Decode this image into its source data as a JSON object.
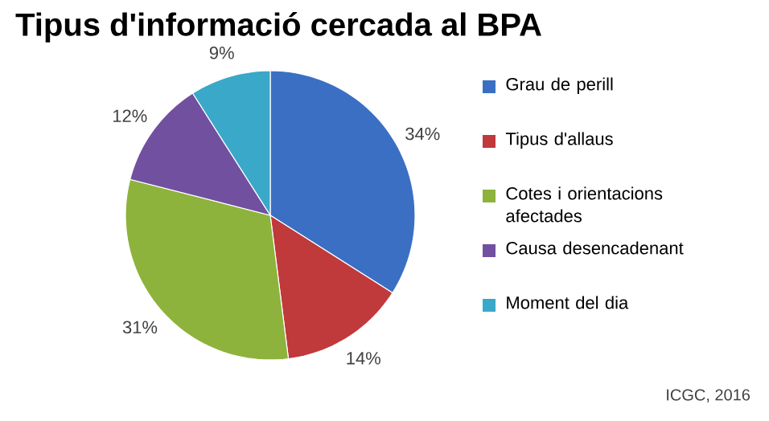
{
  "chart_data": {
    "type": "pie",
    "title": "Tipus d'informació cercada al BPA",
    "categories": [
      "Grau de perill",
      "Tipus d'allaus",
      "Cotes i orientacions afectades",
      "Causa desencadenant",
      "Moment del dia"
    ],
    "values": [
      34,
      14,
      31,
      12,
      9
    ],
    "colors": [
      "#3a6fc4",
      "#c0393b",
      "#8db33c",
      "#7150a0",
      "#3aa8c8"
    ],
    "value_labels": [
      "34%",
      "14%",
      "31%",
      "12%",
      "9%"
    ],
    "legend": "right",
    "annotations": [
      "ICGC, 2016"
    ]
  }
}
